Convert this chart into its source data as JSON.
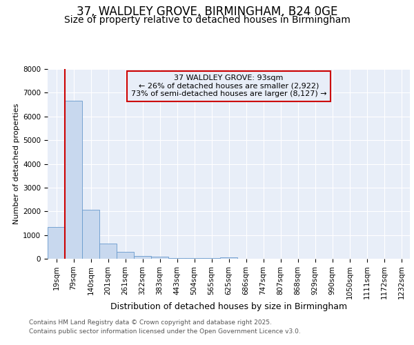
{
  "title_line1": "37, WALDLEY GROVE, BIRMINGHAM, B24 0GE",
  "title_line2": "Size of property relative to detached houses in Birmingham",
  "xlabel": "Distribution of detached houses by size in Birmingham",
  "ylabel": "Number of detached properties",
  "categories": [
    "19sqm",
    "79sqm",
    "140sqm",
    "201sqm",
    "261sqm",
    "322sqm",
    "383sqm",
    "443sqm",
    "504sqm",
    "565sqm",
    "625sqm",
    "686sqm",
    "747sqm",
    "807sqm",
    "868sqm",
    "929sqm",
    "990sqm",
    "1050sqm",
    "1111sqm",
    "1172sqm",
    "1232sqm"
  ],
  "values": [
    1350,
    6650,
    2080,
    635,
    290,
    130,
    85,
    40,
    35,
    35,
    55,
    0,
    0,
    0,
    0,
    0,
    0,
    0,
    0,
    0,
    0
  ],
  "bar_color": "#c8d8ee",
  "bar_edge_color": "#6699cc",
  "vline_color": "#cc0000",
  "vline_x": 0.5,
  "annotation_line1": "37 WALDLEY GROVE: 93sqm",
  "annotation_line2": "← 26% of detached houses are smaller (2,922)",
  "annotation_line3": "73% of semi-detached houses are larger (8,127) →",
  "annotation_box_edgecolor": "#cc0000",
  "ylim_max": 8000,
  "yticks": [
    0,
    1000,
    2000,
    3000,
    4000,
    5000,
    6000,
    7000,
    8000
  ],
  "bg_color": "#ffffff",
  "plot_bg_color": "#e8eef8",
  "grid_color": "#ffffff",
  "footnote_line1": "Contains HM Land Registry data © Crown copyright and database right 2025.",
  "footnote_line2": "Contains public sector information licensed under the Open Government Licence v3.0.",
  "title1_fontsize": 12,
  "title2_fontsize": 10,
  "tick_fontsize": 7.5,
  "ylabel_fontsize": 8,
  "xlabel_fontsize": 9,
  "annot_fontsize": 8
}
